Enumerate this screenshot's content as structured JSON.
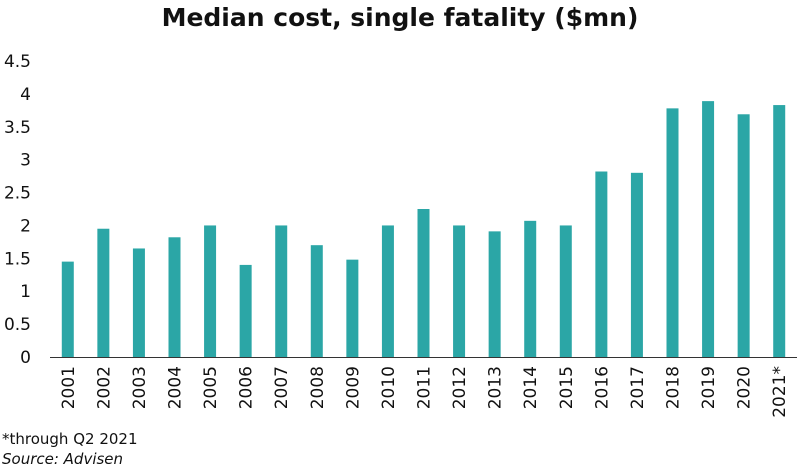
{
  "chart_data": {
    "type": "bar",
    "title": "Median cost, single fatality ($mn)",
    "xlabel": "",
    "ylabel": "",
    "categories": [
      "2001",
      "2002",
      "2003",
      "2004",
      "2005",
      "2006",
      "2007",
      "2008",
      "2009",
      "2010",
      "2011",
      "2012",
      "2013",
      "2014",
      "2015",
      "2016",
      "2017",
      "2018",
      "2019",
      "2020",
      "2021*"
    ],
    "values": [
      1.45,
      1.95,
      1.65,
      1.82,
      2.0,
      1.4,
      2.0,
      1.7,
      1.48,
      2.0,
      2.25,
      2.0,
      1.91,
      2.07,
      2.0,
      2.82,
      2.8,
      3.78,
      3.89,
      3.69,
      3.83
    ],
    "ylim": [
      0,
      4.5
    ],
    "yticks": [
      "0",
      "0.5",
      "1",
      "1.5",
      "2",
      "2.5",
      "3",
      "3.5",
      "4",
      "4.5"
    ],
    "grid": false,
    "legend": "none",
    "bar_color": "#2ba6a6",
    "axis_color": "#333333"
  },
  "footnote": "*through Q2 2021",
  "source": "Source: Advisen"
}
